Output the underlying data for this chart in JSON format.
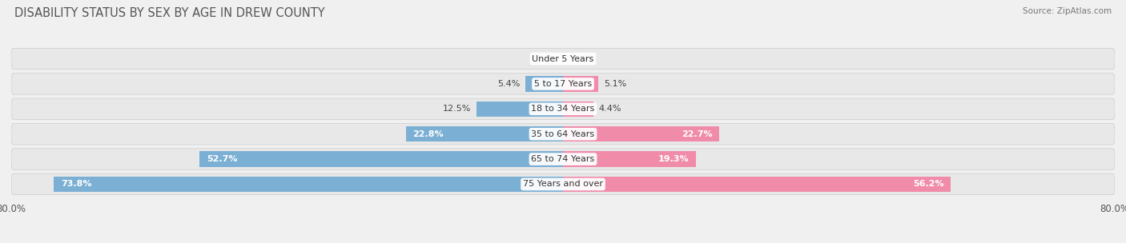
{
  "title": "DISABILITY STATUS BY SEX BY AGE IN DREW COUNTY",
  "source": "Source: ZipAtlas.com",
  "categories": [
    "Under 5 Years",
    "5 to 17 Years",
    "18 to 34 Years",
    "35 to 64 Years",
    "65 to 74 Years",
    "75 Years and over"
  ],
  "male_values": [
    0.0,
    5.4,
    12.5,
    22.8,
    52.7,
    73.8
  ],
  "female_values": [
    0.0,
    5.1,
    4.4,
    22.7,
    19.3,
    56.2
  ],
  "male_color": "#7bafd4",
  "female_color": "#f08caa",
  "axis_max": 80.0,
  "bar_height": 0.62,
  "background_color": "#f0f0f0",
  "bar_bg_color": "#e0e0e0",
  "title_fontsize": 10.5,
  "label_fontsize": 8.0,
  "tick_fontsize": 8.5,
  "category_fontsize": 8.0
}
